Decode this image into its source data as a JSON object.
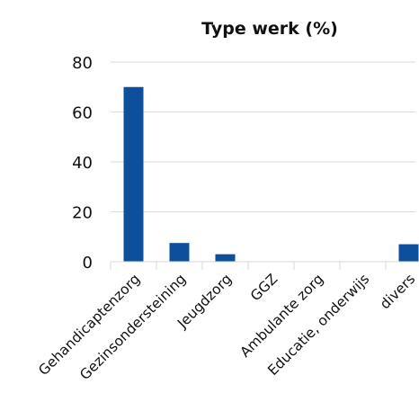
{
  "chart_data": {
    "type": "bar",
    "title": "Type werk (%)",
    "categories": [
      "Gehandicaptenzorg",
      "Gezinsondersteining",
      "Jeugdzorg",
      "GGZ",
      "Ambulante zorg",
      "Educatie, onderwijs",
      "divers"
    ],
    "values": [
      70,
      7.5,
      3,
      0,
      0,
      0,
      7
    ],
    "xlabel": "",
    "ylabel": "",
    "ylim": [
      0,
      80
    ],
    "yticks": [
      0,
      20,
      40,
      60,
      80
    ],
    "grid": true,
    "legend": "none",
    "bar_color": "#0d4f9a"
  }
}
